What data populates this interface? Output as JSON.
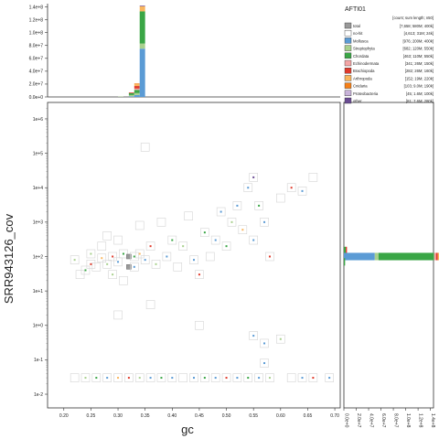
{
  "chart_data": {
    "type": "scatter",
    "subtype": "blobplot",
    "xlabel": "gc",
    "ylabel": "SRR943126_cov",
    "xlim": [
      0.17,
      0.71
    ],
    "ylim": [
      0.004,
      3000000
    ],
    "y_scale": "log",
    "x_ticks": [
      "0.20",
      "0.25",
      "0.30",
      "0.35",
      "0.40",
      "0.45",
      "0.50",
      "0.55",
      "0.60",
      "0.65",
      "0.70"
    ],
    "y_ticks": [
      "1e-2",
      "1e-1",
      "1e+0",
      "1e+1",
      "1e+2",
      "1e+3",
      "1e+4",
      "1e+5",
      "1e+6"
    ],
    "top_hist_ticks": [
      "0.0e+0",
      "2.0e+7",
      "4.0e+7",
      "6.0e+7",
      "8.0e+7",
      "1.0e+8",
      "1.2e+8",
      "1.4e+8"
    ],
    "right_hist_ticks": [
      "0.0e+0",
      "2.0e+7",
      "4.0e+7",
      "6.0e+7",
      "8.0e+7",
      "1.0e+8",
      "1.2e+8",
      "1.4e+8"
    ],
    "legend": {
      "title": "AFTI01",
      "header": "[count; sum length; n50]",
      "placement": "top-right",
      "items": [
        {
          "name": "total",
          "stats": "[7,658; 580M; 400k]",
          "color": "#999999"
        },
        {
          "name": "no-hit",
          "stats": "[4,613; 31M; 24k]",
          "color": "#ffffff"
        },
        {
          "name": "Mollusca",
          "stats": "[976; 200M; 400k]",
          "color": "#5b9bd5"
        },
        {
          "name": "Streptophyta",
          "stats": "[682; 120M; 550k]",
          "color": "#a8d08d"
        },
        {
          "name": "Chordata",
          "stats": "[463; 110M; 550k]",
          "color": "#3aa646"
        },
        {
          "name": "Echinodermata",
          "stats": "[341; 26M; 150k]",
          "color": "#f4a6a6"
        },
        {
          "name": "Brachiopoda",
          "stats": "[282; 26M; 160k]",
          "color": "#e03b2c"
        },
        {
          "name": "Arthropoda",
          "stats": "[152; 19M; 220k]",
          "color": "#f9b65e"
        },
        {
          "name": "Cnidaria",
          "stats": "[103; 9.0M; 190k]",
          "color": "#f57f17"
        },
        {
          "name": "Proteobacteria",
          "stats": "[45; 1.6M; 100k]",
          "color": "#c8b3d9"
        },
        {
          "name": "other",
          "stats": "[81; 7.6M; 280k]",
          "color": "#6a4c93"
        }
      ]
    },
    "top_histogram": {
      "x_bins": [
        0.305,
        0.315,
        0.325,
        0.335,
        0.345,
        0.355
      ],
      "series": [
        {
          "name": "Mollusca",
          "values": [
            0,
            0,
            1000000,
            3000000,
            75000000,
            0
          ]
        },
        {
          "name": "Streptophyta",
          "values": [
            500000,
            0,
            2000000,
            3000000,
            8000000,
            0
          ]
        },
        {
          "name": "Chordata",
          "values": [
            0,
            0,
            3000000,
            5000000,
            50000000,
            0
          ]
        },
        {
          "name": "Echinodermata",
          "values": [
            0,
            0,
            0,
            2000000,
            0,
            0
          ]
        },
        {
          "name": "Brachiopoda",
          "values": [
            0,
            0,
            1000000,
            4000000,
            0,
            0
          ]
        },
        {
          "name": "Arthropoda",
          "values": [
            0,
            0,
            0,
            3000000,
            8000000,
            0
          ]
        },
        {
          "name": "Cnidaria",
          "values": [
            0,
            0,
            0,
            1000000,
            0,
            0
          ]
        },
        {
          "name": "other",
          "values": [
            0,
            0,
            0,
            0,
            1000000,
            0
          ]
        }
      ]
    },
    "right_histogram": {
      "y_bins": [
        150,
        100,
        70
      ],
      "series": [
        {
          "name": "Mollusca",
          "values": [
            0,
            50000000,
            0
          ]
        },
        {
          "name": "Streptophyta",
          "values": [
            0,
            6000000,
            0
          ]
        },
        {
          "name": "Chordata",
          "values": [
            3000000,
            90000000,
            2000000
          ]
        },
        {
          "name": "Echinodermata",
          "values": [
            0,
            3000000,
            0
          ]
        },
        {
          "name": "Brachiopoda",
          "values": [
            2000000,
            3000000,
            0
          ]
        },
        {
          "name": "Arthropoda",
          "values": [
            0,
            3000000,
            0
          ]
        },
        {
          "name": "Cnidaria",
          "values": [
            0,
            1000000,
            0
          ]
        }
      ]
    },
    "points": [
      {
        "x": 0.22,
        "y": 80,
        "c": "Streptophyta"
      },
      {
        "x": 0.23,
        "y": 30,
        "c": "no-hit"
      },
      {
        "x": 0.24,
        "y": 40,
        "c": "Chordata"
      },
      {
        "x": 0.25,
        "y": 60,
        "c": "Brachiopoda"
      },
      {
        "x": 0.25,
        "y": 120,
        "c": "Streptophyta"
      },
      {
        "x": 0.26,
        "y": 50,
        "c": "no-hit"
      },
      {
        "x": 0.27,
        "y": 90,
        "c": "Arthropoda"
      },
      {
        "x": 0.27,
        "y": 200,
        "c": "no-hit"
      },
      {
        "x": 0.28,
        "y": 60,
        "c": "Streptophyta"
      },
      {
        "x": 0.28,
        "y": 400,
        "c": "no-hit"
      },
      {
        "x": 0.29,
        "y": 100,
        "c": "Brachiopoda"
      },
      {
        "x": 0.29,
        "y": 30,
        "c": "Streptophyta"
      },
      {
        "x": 0.3,
        "y": 70,
        "c": "Mollusca"
      },
      {
        "x": 0.3,
        "y": 300,
        "c": "no-hit"
      },
      {
        "x": 0.31,
        "y": 120,
        "c": "Chordata"
      },
      {
        "x": 0.31,
        "y": 20,
        "c": "no-hit"
      },
      {
        "x": 0.32,
        "y": 100,
        "c": "total"
      },
      {
        "x": 0.32,
        "y": 50,
        "c": "total"
      },
      {
        "x": 0.33,
        "y": 100,
        "c": "Chordata"
      },
      {
        "x": 0.33,
        "y": 50,
        "c": "Mollusca"
      },
      {
        "x": 0.34,
        "y": 120,
        "c": "Arthropoda"
      },
      {
        "x": 0.34,
        "y": 800,
        "c": "no-hit"
      },
      {
        "x": 0.35,
        "y": 80,
        "c": "Mollusca"
      },
      {
        "x": 0.35,
        "y": 150000,
        "c": "no-hit"
      },
      {
        "x": 0.36,
        "y": 200,
        "c": "Brachiopoda"
      },
      {
        "x": 0.37,
        "y": 60,
        "c": "Streptophyta"
      },
      {
        "x": 0.38,
        "y": 1000,
        "c": "no-hit"
      },
      {
        "x": 0.39,
        "y": 100,
        "c": "Mollusca"
      },
      {
        "x": 0.4,
        "y": 300,
        "c": "Chordata"
      },
      {
        "x": 0.41,
        "y": 50,
        "c": "no-hit"
      },
      {
        "x": 0.42,
        "y": 200,
        "c": "Streptophyta"
      },
      {
        "x": 0.43,
        "y": 1500,
        "c": "no-hit"
      },
      {
        "x": 0.44,
        "y": 80,
        "c": "Mollusca"
      },
      {
        "x": 0.45,
        "y": 30,
        "c": "Brachiopoda"
      },
      {
        "x": 0.46,
        "y": 500,
        "c": "Chordata"
      },
      {
        "x": 0.47,
        "y": 100,
        "c": "no-hit"
      },
      {
        "x": 0.48,
        "y": 300,
        "c": "Mollusca"
      },
      {
        "x": 0.49,
        "y": 2000,
        "c": "Mollusca"
      },
      {
        "x": 0.5,
        "y": 200,
        "c": "Chordata"
      },
      {
        "x": 0.51,
        "y": 1000,
        "c": "Streptophyta"
      },
      {
        "x": 0.52,
        "y": 3000,
        "c": "Mollusca"
      },
      {
        "x": 0.53,
        "y": 600,
        "c": "Arthropoda"
      },
      {
        "x": 0.54,
        "y": 10000,
        "c": "Mollusca"
      },
      {
        "x": 0.55,
        "y": 20000,
        "c": "other"
      },
      {
        "x": 0.55,
        "y": 300,
        "c": "Mollusca"
      },
      {
        "x": 0.56,
        "y": 3000,
        "c": "Chordata"
      },
      {
        "x": 0.57,
        "y": 1000,
        "c": "Mollusca"
      },
      {
        "x": 0.57,
        "y": 0.3,
        "c": "Mollusca"
      },
      {
        "x": 0.58,
        "y": 100,
        "c": "Brachiopoda"
      },
      {
        "x": 0.6,
        "y": 5000,
        "c": "no-hit"
      },
      {
        "x": 0.62,
        "y": 10000,
        "c": "Brachiopoda"
      },
      {
        "x": 0.64,
        "y": 8000,
        "c": "Mollusca"
      },
      {
        "x": 0.66,
        "y": 20000,
        "c": "no-hit"
      },
      {
        "x": 0.3,
        "y": 2,
        "c": "no-hit"
      },
      {
        "x": 0.36,
        "y": 4,
        "c": "no-hit"
      },
      {
        "x": 0.45,
        "y": 1,
        "c": "no-hit"
      },
      {
        "x": 0.55,
        "y": 0.5,
        "c": "Mollusca"
      },
      {
        "x": 0.57,
        "y": 0.08,
        "c": "Mollusca"
      },
      {
        "x": 0.6,
        "y": 0.4,
        "c": "Streptophyta"
      },
      {
        "x": 0.22,
        "y": 0.03,
        "c": "no-hit"
      },
      {
        "x": 0.24,
        "y": 0.03,
        "c": "Streptophyta"
      },
      {
        "x": 0.26,
        "y": 0.03,
        "c": "Chordata"
      },
      {
        "x": 0.28,
        "y": 0.03,
        "c": "Mollusca"
      },
      {
        "x": 0.3,
        "y": 0.03,
        "c": "Arthropoda"
      },
      {
        "x": 0.32,
        "y": 0.03,
        "c": "Brachiopoda"
      },
      {
        "x": 0.34,
        "y": 0.03,
        "c": "Streptophyta"
      },
      {
        "x": 0.36,
        "y": 0.03,
        "c": "Mollusca"
      },
      {
        "x": 0.38,
        "y": 0.03,
        "c": "Chordata"
      },
      {
        "x": 0.4,
        "y": 0.03,
        "c": "Mollusca"
      },
      {
        "x": 0.42,
        "y": 0.03,
        "c": "no-hit"
      },
      {
        "x": 0.44,
        "y": 0.03,
        "c": "Mollusca"
      },
      {
        "x": 0.46,
        "y": 0.03,
        "c": "Chordata"
      },
      {
        "x": 0.48,
        "y": 0.03,
        "c": "Mollusca"
      },
      {
        "x": 0.5,
        "y": 0.03,
        "c": "Brachiopoda"
      },
      {
        "x": 0.52,
        "y": 0.03,
        "c": "Mollusca"
      },
      {
        "x": 0.54,
        "y": 0.03,
        "c": "Chordata"
      },
      {
        "x": 0.56,
        "y": 0.03,
        "c": "Mollusca"
      },
      {
        "x": 0.58,
        "y": 0.03,
        "c": "Streptophyta"
      },
      {
        "x": 0.62,
        "y": 0.03,
        "c": "no-hit"
      },
      {
        "x": 0.64,
        "y": 0.03,
        "c": "Mollusca"
      },
      {
        "x": 0.66,
        "y": 0.03,
        "c": "Brachiopoda"
      },
      {
        "x": 0.69,
        "y": 0.03,
        "c": "Mollusca"
      }
    ]
  }
}
